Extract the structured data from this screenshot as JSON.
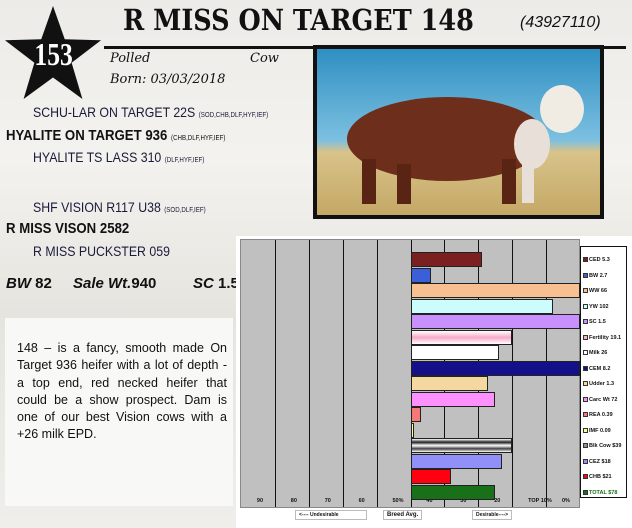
{
  "header": {
    "lot_number": "153",
    "title": "R MISS ON TARGET 148",
    "registration": "(43927110)",
    "polled": "Polled",
    "sex": "Cow",
    "born": "Born: 03/03/2018"
  },
  "pedigree": {
    "sire_sire": {
      "name": "SCHU-LAR ON TARGET 22S",
      "tags": "(SOD,CHB,DLF,HYF,IEF)"
    },
    "sire": {
      "name": "HYALITE ON TARGET 936",
      "tags": "(CHB,DLF,HYF,IEF)"
    },
    "sire_dam": {
      "name": "HYALITE TS LASS 310",
      "tags": "(DLF,HYF,IEF)"
    },
    "dam_sire": {
      "name": "SHF VISION R117 U38",
      "tags": "(SOD,DLF,IEF)"
    },
    "dam": {
      "name": "R MISS VISON 2582"
    },
    "dam_dam": {
      "name": "R MISS PUCKSTER 059"
    }
  },
  "stats": {
    "bw_label": "BW",
    "bw": "82",
    "sale_label": "Sale Wt.",
    "sale": "940",
    "sc_label": "SC",
    "sc": "1.5"
  },
  "description": "148 – is a fancy, smooth made On Target 936 heifer with a lot of depth - a top end, red necked heifer that could be a show prospect.  Dam is one of our best Vision cows with a +26 milk EPD.",
  "chart_data": {
    "type": "bar",
    "orientation": "horizontal",
    "x_axis": "percentile rank",
    "xlim": [
      100,
      0
    ],
    "baseline": 50,
    "tick_labels": [
      "90",
      "80",
      "70",
      "60",
      "50%",
      "40",
      "30",
      "20",
      "TOP 10%",
      "0%"
    ],
    "categories": [
      "CED",
      "BW",
      "WW",
      "YW",
      "SC",
      "Fertility",
      "Milk",
      "CEM",
      "Udder",
      "Carc Wt",
      "REA",
      "IMF",
      "Blk Cow",
      "CEZ",
      "CHB",
      "TOTAL"
    ],
    "epd_labels": [
      "5.3",
      "2.7",
      "66",
      "102",
      "1.5",
      "19.1",
      "26",
      "8.2",
      "1.3",
      "72",
      "0.39",
      "0.09",
      "$39",
      "$18",
      "$21",
      "$78"
    ],
    "percentiles": [
      29,
      44,
      0,
      8,
      0,
      20,
      24,
      0,
      27,
      25,
      47,
      49,
      20,
      23,
      38,
      25
    ],
    "colors": [
      "#7a2020",
      "#3a5fd8",
      "#f8c090",
      "#ccfcfc",
      "#c890fc",
      "#f8b0d0",
      "#ffffff",
      "#14108a",
      "#f5d8a0",
      "#fc90fc",
      "#f87878",
      "#ffff90",
      "#909090",
      "#9090f8",
      "#ff0010",
      "#187018"
    ],
    "footer": {
      "left": "<---- Undesirable",
      "center": "Breed Avg.",
      "right": "Desirable---->"
    }
  }
}
